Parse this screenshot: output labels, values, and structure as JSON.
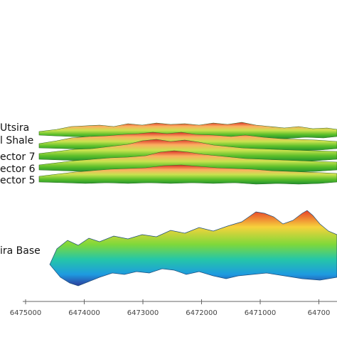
{
  "layers": {
    "utsira": "Utsira",
    "shale": "l Shale",
    "reflector7": "ector 7",
    "reflector6": "ector 6",
    "reflector5": "ector 5",
    "utsira_base": "ira Base"
  },
  "axis": {
    "ticks": [
      "6475000",
      "6474000",
      "6473000",
      "6472000",
      "6471000",
      "64700"
    ]
  },
  "colors": {
    "high": "#d73027",
    "mid_high": "#fdae61",
    "mid": "#a6d96a",
    "low_mid": "#1a9850",
    "low": "#33b5e5",
    "deep": "#2b3fa0"
  }
}
